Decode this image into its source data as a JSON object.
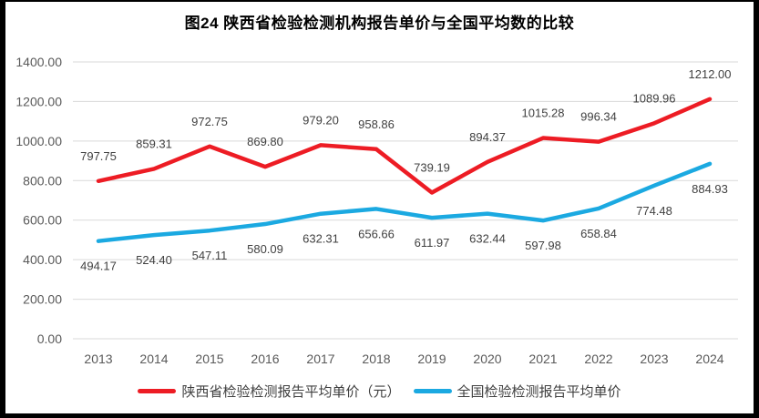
{
  "title": "图24 陕西省检验检测机构报告单价与全国平均数的比较",
  "chart_data": {
    "type": "line",
    "categories": [
      "2013",
      "2014",
      "2015",
      "2016",
      "2017",
      "2018",
      "2019",
      "2020",
      "2021",
      "2022",
      "2023",
      "2024"
    ],
    "series": [
      {
        "name": "陕西省检验检测报告平均单价（元）",
        "color": "#ED1C24",
        "label_position": "above",
        "values": [
          797.75,
          859.31,
          972.75,
          869.8,
          979.2,
          958.86,
          739.19,
          894.37,
          1015.28,
          996.34,
          1089.96,
          1212.0
        ]
      },
      {
        "name": "全国检验检测报告平均单价",
        "color": "#1BA9E1",
        "label_position": "below",
        "values": [
          494.17,
          524.4,
          547.11,
          580.09,
          632.31,
          656.66,
          611.97,
          632.44,
          597.98,
          658.84,
          774.48,
          884.93
        ]
      }
    ],
    "xlabel": "",
    "ylabel": "",
    "ylim": [
      0,
      1400
    ],
    "y_ticks": [
      "1400.00",
      "1200.00",
      "1000.00",
      "800.00",
      "600.00",
      "400.00",
      "200.00",
      "0.00"
    ],
    "grid": true,
    "data_labels": true,
    "label_decimals": 2,
    "legend_position": "bottom",
    "grid_color": "#D9D9D9",
    "tick_color": "#595959",
    "label_color": "#404040"
  }
}
